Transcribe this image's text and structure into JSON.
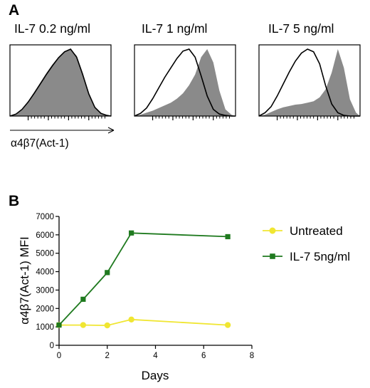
{
  "panel_a": {
    "letter": "A",
    "titles": [
      "IL-7 0.2 ng/ml",
      "IL-7 1 ng/ml",
      "IL-7 5 ng/ml"
    ],
    "x_axis_label": "α4β7(Act-1)",
    "fill_color": "#8a8a8a",
    "line_color": "#000000"
  },
  "panel_b": {
    "letter": "B"
  },
  "chart_data": [
    {
      "type": "area",
      "title": "IL-7 0.2 ng/ml",
      "xlabel": "α4β7(Act-1)",
      "x": [
        0,
        0.06,
        0.12,
        0.18,
        0.24,
        0.3,
        0.36,
        0.42,
        0.48,
        0.54,
        0.6,
        0.66,
        0.72,
        0.78,
        0.84,
        0.9,
        0.96,
        1
      ],
      "series": [
        {
          "values": [
            0,
            0.03,
            0.1,
            0.22,
            0.36,
            0.5,
            0.64,
            0.77,
            0.88,
            0.97,
            1.0,
            0.9,
            0.65,
            0.35,
            0.14,
            0.05,
            0.01,
            0
          ]
        },
        {
          "values": [
            0,
            0.03,
            0.1,
            0.21,
            0.34,
            0.48,
            0.62,
            0.75,
            0.87,
            0.96,
            1.0,
            0.88,
            0.62,
            0.33,
            0.13,
            0.04,
            0.01,
            0
          ]
        }
      ]
    },
    {
      "type": "area",
      "title": "IL-7 1 ng/ml",
      "xlabel": "α4β7(Act-1)",
      "x": [
        0,
        0.06,
        0.12,
        0.18,
        0.24,
        0.3,
        0.36,
        0.42,
        0.48,
        0.54,
        0.6,
        0.66,
        0.72,
        0.78,
        0.84,
        0.9,
        0.96,
        1
      ],
      "series": [
        {
          "values": [
            0,
            0.02,
            0.05,
            0.08,
            0.12,
            0.16,
            0.2,
            0.26,
            0.34,
            0.46,
            0.62,
            0.88,
            1.0,
            0.8,
            0.38,
            0.1,
            0.02,
            0
          ]
        },
        {
          "values": [
            0,
            0.04,
            0.12,
            0.26,
            0.42,
            0.58,
            0.72,
            0.86,
            0.97,
            1.0,
            0.88,
            0.6,
            0.3,
            0.1,
            0.03,
            0.01,
            0,
            0
          ]
        }
      ]
    },
    {
      "type": "area",
      "title": "IL-7 5 ng/ml",
      "xlabel": "α4β7(Act-1)",
      "x": [
        0,
        0.06,
        0.12,
        0.18,
        0.24,
        0.3,
        0.36,
        0.42,
        0.48,
        0.54,
        0.6,
        0.66,
        0.72,
        0.78,
        0.84,
        0.9,
        0.96,
        1
      ],
      "series": [
        {
          "values": [
            0,
            0.02,
            0.06,
            0.1,
            0.13,
            0.15,
            0.17,
            0.18,
            0.2,
            0.22,
            0.28,
            0.4,
            0.65,
            1.0,
            0.72,
            0.25,
            0.05,
            0
          ]
        },
        {
          "values": [
            0,
            0.05,
            0.14,
            0.3,
            0.48,
            0.66,
            0.82,
            0.94,
            1.0,
            0.96,
            0.78,
            0.45,
            0.18,
            0.05,
            0.01,
            0,
            0,
            0
          ]
        }
      ]
    },
    {
      "type": "line",
      "xlabel": "Days",
      "ylabel": "α4β7(Act-1) MFI",
      "xlim": [
        0,
        8
      ],
      "ylim": [
        0,
        7000
      ],
      "xticks": [
        0,
        2,
        4,
        6,
        8
      ],
      "yticks": [
        0,
        1000,
        2000,
        3000,
        4000,
        5000,
        6000,
        7000
      ],
      "legend_position": "right",
      "series": [
        {
          "name": "Untreated",
          "color": "#f0e632",
          "marker": "circle",
          "x": [
            0,
            1,
            2,
            3,
            7
          ],
          "values": [
            1100,
            1100,
            1080,
            1400,
            1100
          ]
        },
        {
          "name": "IL-7 5ng/ml",
          "color": "#1f7a1f",
          "marker": "square",
          "x": [
            0,
            1,
            2,
            3,
            7
          ],
          "values": [
            1100,
            2500,
            3950,
            6100,
            5900
          ]
        }
      ]
    }
  ]
}
